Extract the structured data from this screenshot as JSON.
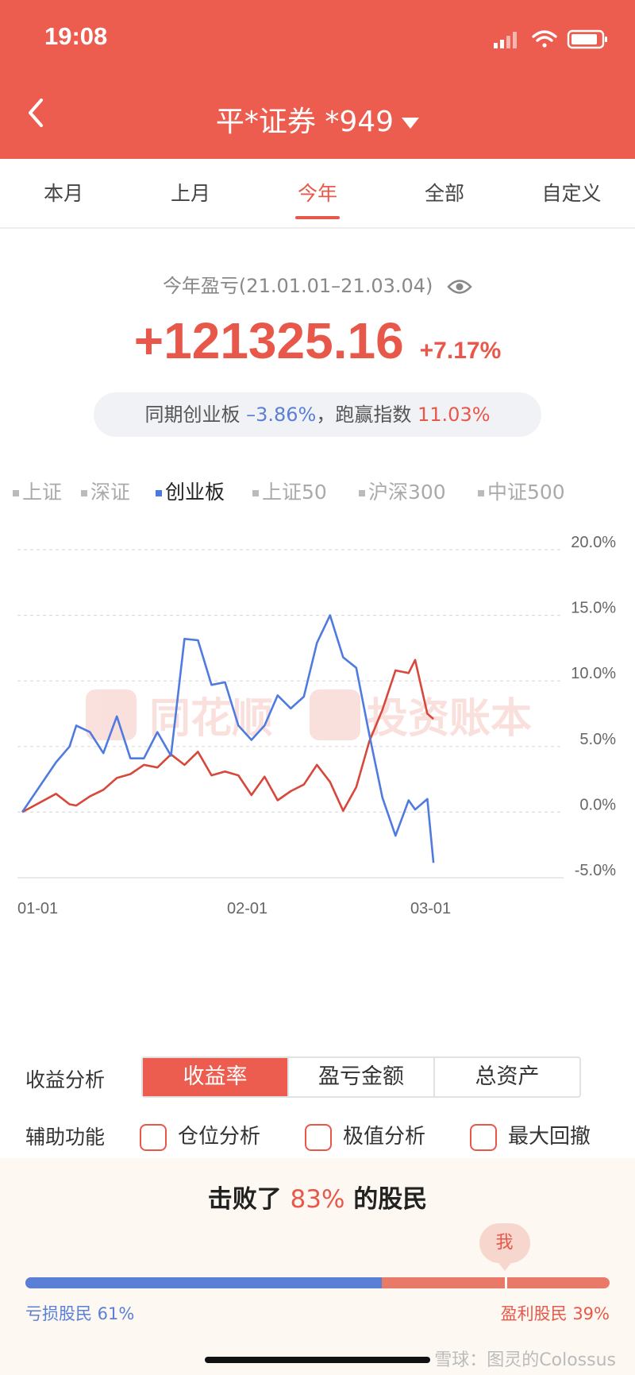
{
  "status_bar": {
    "time": "19:08"
  },
  "header": {
    "title": "平*证券 *949"
  },
  "tabs": [
    {
      "label": "本月",
      "active": false
    },
    {
      "label": "上月",
      "active": false
    },
    {
      "label": "今年",
      "active": true
    },
    {
      "label": "全部",
      "active": false
    },
    {
      "label": "自定义",
      "active": false
    }
  ],
  "summary": {
    "period_label": "今年盈亏(21.01.01–21.03.04)",
    "profit": "+121325.16",
    "profit_pct": "+7.17%",
    "compare_prefix": "同期创业板",
    "compare_index_pct": "–3.86%",
    "compare_sep": "，跑赢指数",
    "compare_outperform_pct": "11.03%"
  },
  "index_legend": [
    {
      "label": "上证",
      "active": false
    },
    {
      "label": "深证",
      "active": false
    },
    {
      "label": "创业板",
      "active": true
    },
    {
      "label": "上证50",
      "active": false
    },
    {
      "label": "沪深300",
      "active": false
    },
    {
      "label": "中证500",
      "active": false
    }
  ],
  "watermark": {
    "brand": "同花顺",
    "product": "投资账本"
  },
  "chart_data": {
    "type": "line",
    "x_labels": [
      "01-01",
      "02-01",
      "03-01"
    ],
    "y_ticks": [
      "20.0%",
      "15.0%",
      "10.0%",
      "5.0%",
      "0.0%",
      "-5.0%"
    ],
    "ylim": [
      -5,
      20
    ],
    "grid": true,
    "colors": {
      "account": "#d8473b",
      "index": "#4f7be0"
    },
    "series": [
      {
        "name": "account",
        "x": [
          "01-01",
          "01-06",
          "01-08",
          "01-09",
          "01-11",
          "01-13",
          "01-15",
          "01-17",
          "01-19",
          "01-21",
          "01-23",
          "01-25",
          "01-27",
          "01-29",
          "01-31",
          "02-02",
          "02-04",
          "02-06",
          "02-08",
          "02-10",
          "02-12",
          "02-14",
          "02-16",
          "02-18",
          "02-20",
          "02-22",
          "02-24",
          "02-26",
          "02-28",
          "03-01",
          "03-03",
          "03-04"
        ],
        "values": [
          0,
          1.4,
          0.6,
          0.5,
          1.2,
          1.7,
          2.6,
          2.9,
          3.6,
          3.4,
          4.4,
          3.6,
          4.6,
          2.8,
          3.1,
          2.8,
          1.3,
          2.7,
          0.9,
          1.6,
          2.1,
          3.6,
          2.3,
          0.1,
          1.9,
          5.4,
          7.8,
          10.8,
          10.6,
          11.6,
          7.5,
          7.1
        ]
      },
      {
        "name": "index",
        "x": [
          "01-01",
          "01-06",
          "01-08",
          "01-09",
          "01-11",
          "01-13",
          "01-15",
          "01-17",
          "01-19",
          "01-21",
          "01-23",
          "01-25",
          "01-27",
          "01-29",
          "01-31",
          "02-02",
          "02-04",
          "02-06",
          "02-08",
          "02-10",
          "02-12",
          "02-14",
          "02-16",
          "02-18",
          "02-20",
          "02-22",
          "02-24",
          "02-26",
          "02-28",
          "03-01",
          "03-03",
          "03-04"
        ],
        "values": [
          0,
          3.8,
          5.0,
          6.6,
          6.1,
          4.5,
          7.3,
          4.1,
          4.1,
          6.1,
          4.3,
          13.2,
          13.1,
          9.7,
          9.9,
          6.6,
          5.5,
          6.6,
          8.9,
          7.9,
          8.8,
          12.9,
          15.0,
          11.8,
          11.0,
          5.9,
          1.1,
          -1.8,
          0.9,
          0.2,
          1.0,
          -3.86
        ]
      }
    ]
  },
  "analysis": {
    "label": "收益分析",
    "options": [
      {
        "label": "收益率",
        "active": true
      },
      {
        "label": "盈亏金额",
        "active": false
      },
      {
        "label": "总资产",
        "active": false
      }
    ]
  },
  "aux": {
    "label": "辅助功能",
    "options": [
      {
        "label": "仓位分析"
      },
      {
        "label": "极值分析"
      },
      {
        "label": "最大回撤"
      }
    ]
  },
  "rank": {
    "prefix": "击败了",
    "pct": "83%",
    "suffix": "的股民",
    "me_label": "我",
    "loss_label": "亏损股民 61%",
    "win_label": "盈利股民 39%",
    "loss_fraction": 0.61,
    "me_position": 0.82
  },
  "footer_watermark": "雪球：图灵的Colossus"
}
